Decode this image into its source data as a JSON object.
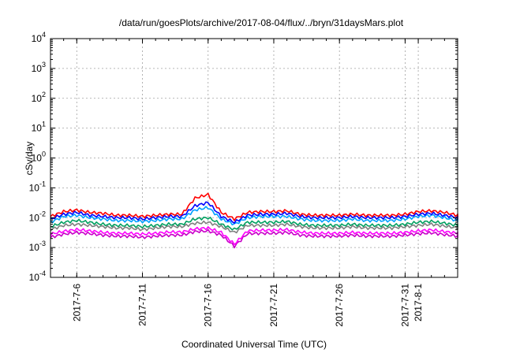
{
  "chart_data": {
    "type": "line",
    "title": "/data/run/goesPlots/archive/2017-08-04/flux/../bryn/31daysMars.plot",
    "xlabel": "Coordinated Universal Time (UTC)",
    "ylabel": "cSv/day",
    "yscale": "log",
    "ylim": [
      0.0001,
      10000
    ],
    "xlim": [
      "2017-07-04",
      "2017-08-04"
    ],
    "grid": true,
    "y_ticks": [
      {
        "value": 0.0001,
        "base": "10",
        "exp": "-4"
      },
      {
        "value": 0.001,
        "base": "10",
        "exp": "-3"
      },
      {
        "value": 0.01,
        "base": "10",
        "exp": "-2"
      },
      {
        "value": 0.1,
        "base": "10",
        "exp": "-1"
      },
      {
        "value": 1,
        "base": "10",
        "exp": "0"
      },
      {
        "value": 10,
        "base": "10",
        "exp": "1"
      },
      {
        "value": 100,
        "base": "10",
        "exp": "2"
      },
      {
        "value": 1000,
        "base": "10",
        "exp": "3"
      },
      {
        "value": 10000,
        "base": "10",
        "exp": "4"
      }
    ],
    "x_ticks": [
      {
        "date": "2017-07-06",
        "label": "2017-7-6"
      },
      {
        "date": "2017-07-11",
        "label": "2017-7-11"
      },
      {
        "date": "2017-07-16",
        "label": "2017-7-16"
      },
      {
        "date": "2017-07-21",
        "label": "2017-7-21"
      },
      {
        "date": "2017-07-26",
        "label": "2017-7-26"
      },
      {
        "date": "2017-07-31",
        "label": "2017-7-31"
      },
      {
        "date": "2017-08-01",
        "label": "2017-8-1"
      }
    ],
    "x": [
      "2017-07-04",
      "2017-07-05",
      "2017-07-06",
      "2017-07-07",
      "2017-07-08",
      "2017-07-09",
      "2017-07-10",
      "2017-07-11",
      "2017-07-12",
      "2017-07-13",
      "2017-07-14",
      "2017-07-15",
      "2017-07-16",
      "2017-07-17",
      "2017-07-18",
      "2017-07-19",
      "2017-07-20",
      "2017-07-21",
      "2017-07-22",
      "2017-07-23",
      "2017-07-24",
      "2017-07-25",
      "2017-07-26",
      "2017-07-27",
      "2017-07-28",
      "2017-07-29",
      "2017-07-30",
      "2017-07-31",
      "2017-08-01",
      "2017-08-02",
      "2017-08-03",
      "2017-08-04"
    ],
    "series": [
      {
        "color": "#ff0000",
        "values": [
          0.011,
          0.016,
          0.018,
          0.015,
          0.014,
          0.012,
          0.012,
          0.011,
          0.012,
          0.013,
          0.013,
          0.045,
          0.06,
          0.015,
          0.009,
          0.015,
          0.016,
          0.016,
          0.017,
          0.013,
          0.012,
          0.012,
          0.012,
          0.013,
          0.012,
          0.012,
          0.012,
          0.013,
          0.016,
          0.017,
          0.015,
          0.012
        ]
      },
      {
        "color": "#0000ff",
        "values": [
          0.009,
          0.013,
          0.015,
          0.012,
          0.011,
          0.01,
          0.01,
          0.009,
          0.01,
          0.011,
          0.011,
          0.025,
          0.032,
          0.011,
          0.007,
          0.012,
          0.013,
          0.013,
          0.014,
          0.011,
          0.01,
          0.01,
          0.01,
          0.011,
          0.01,
          0.01,
          0.01,
          0.011,
          0.013,
          0.014,
          0.012,
          0.01
        ]
      },
      {
        "color": "#00a0ff",
        "values": [
          0.007,
          0.011,
          0.012,
          0.01,
          0.009,
          0.008,
          0.008,
          0.0075,
          0.008,
          0.009,
          0.009,
          0.018,
          0.022,
          0.009,
          0.006,
          0.01,
          0.011,
          0.011,
          0.011,
          0.009,
          0.008,
          0.008,
          0.008,
          0.009,
          0.008,
          0.008,
          0.008,
          0.009,
          0.011,
          0.012,
          0.01,
          0.008
        ]
      },
      {
        "color": "#00a060",
        "values": [
          0.005,
          0.007,
          0.008,
          0.007,
          0.006,
          0.0055,
          0.0055,
          0.005,
          0.0055,
          0.006,
          0.006,
          0.009,
          0.01,
          0.006,
          0.004,
          0.007,
          0.007,
          0.007,
          0.0075,
          0.006,
          0.0055,
          0.0055,
          0.0055,
          0.006,
          0.0055,
          0.0055,
          0.0055,
          0.006,
          0.007,
          0.0075,
          0.0065,
          0.0055
        ]
      },
      {
        "color": "#808080",
        "values": [
          0.004,
          0.0055,
          0.006,
          0.0055,
          0.005,
          0.0045,
          0.0045,
          0.004,
          0.0045,
          0.005,
          0.005,
          0.0065,
          0.007,
          0.005,
          0.0032,
          0.0055,
          0.0055,
          0.0055,
          0.006,
          0.005,
          0.0045,
          0.0045,
          0.0045,
          0.005,
          0.0045,
          0.0045,
          0.0045,
          0.005,
          0.0055,
          0.006,
          0.0052,
          0.0045
        ]
      },
      {
        "color": "#ff00ff",
        "values": [
          0.0028,
          0.0035,
          0.004,
          0.0036,
          0.0032,
          0.003,
          0.003,
          0.0028,
          0.003,
          0.0033,
          0.0033,
          0.0042,
          0.0045,
          0.0032,
          0.0013,
          0.0036,
          0.0038,
          0.0038,
          0.004,
          0.0033,
          0.003,
          0.003,
          0.003,
          0.0032,
          0.003,
          0.003,
          0.003,
          0.0032,
          0.0036,
          0.0039,
          0.0034,
          0.003
        ]
      },
      {
        "color": "#c800c8",
        "values": [
          0.0022,
          0.0028,
          0.0032,
          0.0029,
          0.0026,
          0.0024,
          0.0024,
          0.0022,
          0.0024,
          0.0026,
          0.0026,
          0.0034,
          0.0036,
          0.0026,
          0.0011,
          0.0029,
          0.003,
          0.003,
          0.0032,
          0.0026,
          0.0024,
          0.0024,
          0.0024,
          0.0026,
          0.0024,
          0.0024,
          0.0024,
          0.0026,
          0.0029,
          0.0031,
          0.0027,
          0.0024
        ]
      }
    ]
  }
}
